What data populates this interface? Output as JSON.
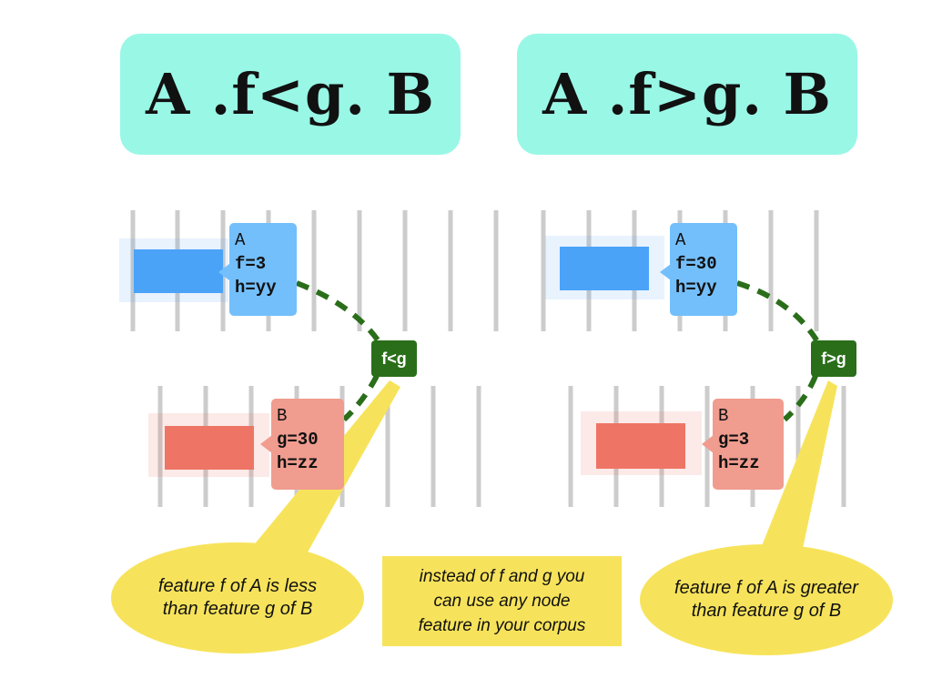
{
  "panels": [
    {
      "title": "A .f<g. B",
      "node_a": {
        "name": "A",
        "f": "f=3",
        "h": "h=yy"
      },
      "node_b": {
        "name": "B",
        "g": "g=30",
        "h": "h=zz"
      },
      "relation": "f<g",
      "callout": [
        "feature f of A is less",
        "than feature g of B"
      ]
    },
    {
      "title": "A .f>g. B",
      "node_a": {
        "name": "A",
        "f": "f=30",
        "h": "h=yy"
      },
      "node_b": {
        "name": "B",
        "g": "g=3",
        "h": "h=zz"
      },
      "relation": "f>g",
      "callout": [
        "feature f of A is greater",
        "than feature g of B"
      ]
    }
  ],
  "note": [
    "instead of f and g you",
    "can use any node",
    "feature in your corpus"
  ],
  "colors": {
    "title_bg": "#99f7e6",
    "node_a": "#4aa3f7",
    "node_a_label": "#73bffb",
    "node_b": "#ee7565",
    "node_b_label": "#f09c8f",
    "relation": "#2a6e1a",
    "callout": "#f7e35b",
    "slot_lines": "#cccccc"
  }
}
